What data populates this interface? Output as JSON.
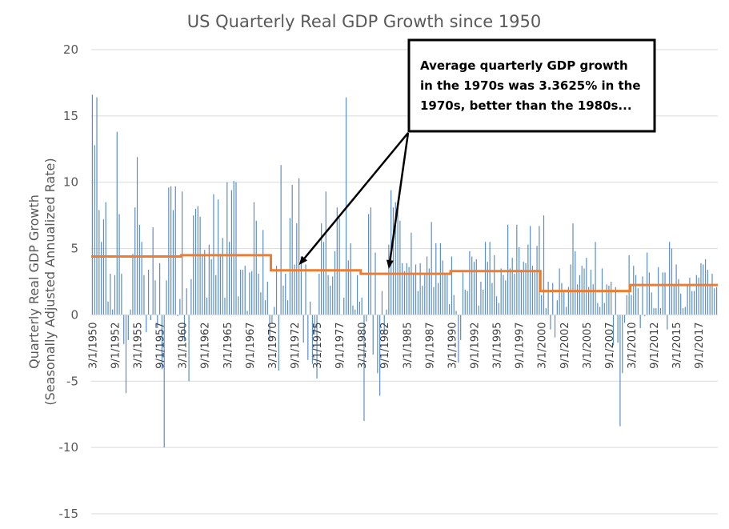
{
  "chart_data": {
    "type": "bar",
    "title": "US Quarterly Real GDP Growth since 1950",
    "ylabel_line1": "Quarterly Real GDP Growth",
    "ylabel_line2": "(Seasonally Adjusted Annualized Rate)",
    "xlabel": "",
    "ylim": [
      -15,
      20
    ],
    "yticks": [
      -15,
      -10,
      -5,
      0,
      5,
      10,
      15,
      20
    ],
    "grid": true,
    "xtick_labels": [
      "3/1/1950",
      "9/1/1952",
      "3/1/1955",
      "9/1/1957",
      "3/1/1960",
      "9/1/1962",
      "3/1/1965",
      "9/1/1967",
      "3/1/1970",
      "9/1/1972",
      "3/1/1975",
      "9/1/1977",
      "3/1/1980",
      "9/1/1982",
      "3/1/1985",
      "9/1/1987",
      "3/1/1990",
      "9/1/1992",
      "3/1/1995",
      "9/1/1997",
      "3/1/2000",
      "9/1/2002",
      "3/1/2005",
      "9/1/2007",
      "3/1/2010",
      "9/1/2012",
      "3/1/2015",
      "9/1/2017"
    ],
    "start_quarter": "3/1/1950",
    "quarterly_growth_by_year": {
      "1950": [
        16.6,
        12.8,
        16.4,
        7.9
      ],
      "1951": [
        5.5,
        7.2,
        8.5,
        1.0
      ],
      "1952": [
        3.1,
        0.4,
        3.0,
        13.8
      ],
      "1953": [
        7.6,
        3.1,
        -2.2,
        -5.9
      ],
      "1954": [
        -1.9,
        0.4,
        4.6,
        8.1
      ],
      "1955": [
        11.9,
        6.8,
        5.5,
        3.0
      ],
      "1956": [
        -1.3,
        3.4,
        -0.4,
        6.6
      ],
      "1957": [
        2.6,
        -1.0,
        3.9,
        -4.1
      ],
      "1958": [
        -10.0,
        2.6,
        9.6,
        9.7
      ],
      "1959": [
        7.9,
        9.7,
        -0.1,
        1.2
      ],
      "1960": [
        9.3,
        -2.0,
        2.0,
        -5.0
      ],
      "1961": [
        2.7,
        7.5,
        8.0,
        8.2
      ],
      "1962": [
        7.4,
        4.5,
        4.9,
        1.3
      ],
      "1963": [
        5.3,
        4.2,
        9.1,
        3.0
      ],
      "1964": [
        8.7,
        4.6,
        5.8,
        1.3
      ],
      "1965": [
        10.0,
        5.5,
        9.4,
        10.1
      ],
      "1966": [
        10.0,
        1.4,
        3.4,
        3.4
      ],
      "1967": [
        3.7,
        0.3,
        3.2,
        3.3
      ],
      "1968": [
        8.5,
        7.1,
        3.1,
        1.7
      ],
      "1969": [
        6.4,
        1.1,
        2.5,
        -1.9
      ],
      "1970": [
        -0.6,
        0.6,
        3.7,
        -4.2
      ],
      "1971": [
        11.3,
        2.2,
        3.1,
        1.1
      ],
      "1972": [
        7.3,
        9.8,
        3.8,
        6.9
      ],
      "1973": [
        10.3,
        4.4,
        -2.1,
        3.8
      ],
      "1974": [
        -3.4,
        1.0,
        -3.7,
        -1.5
      ],
      "1975": [
        -4.8,
        3.1,
        6.9,
        5.5
      ],
      "1976": [
        9.3,
        3.0,
        2.2,
        2.9
      ],
      "1977": [
        4.8,
        8.1,
        7.3,
        0.0
      ],
      "1978": [
        1.3,
        16.4,
        4.1,
        5.4
      ],
      "1979": [
        0.7,
        0.4,
        3.0,
        1.0
      ],
      "1980": [
        1.3,
        -8.0,
        -0.5,
        7.6
      ],
      "1981": [
        8.1,
        -3.0,
        4.7,
        -4.4
      ],
      "1982": [
        -6.1,
        1.8,
        -1.5,
        0.4
      ],
      "1983": [
        5.3,
        9.4,
        8.1,
        8.5
      ],
      "1984": [
        8.2,
        7.1,
        3.9,
        3.3
      ],
      "1985": [
        3.9,
        3.6,
        6.2,
        3.1
      ],
      "1986": [
        3.8,
        1.8,
        3.9,
        2.2
      ],
      "1987": [
        3.0,
        4.4,
        3.5,
        7.0
      ],
      "1988": [
        2.1,
        5.4,
        2.4,
        5.4
      ],
      "1989": [
        4.1,
        3.1,
        3.0,
        0.8
      ],
      "1990": [
        4.4,
        1.5,
        0.3,
        -3.6
      ],
      "1991": [
        -1.9,
        3.2,
        1.9,
        1.8
      ],
      "1992": [
        4.8,
        4.4,
        4.0,
        4.2
      ],
      "1993": [
        0.7,
        2.5,
        1.9,
        5.5
      ],
      "1994": [
        4.0,
        5.5,
        2.4,
        4.5
      ],
      "1995": [
        1.4,
        0.9,
        3.5,
        3.0
      ],
      "1996": [
        2.6,
        6.8,
        3.5,
        4.3
      ],
      "1997": [
        3.1,
        6.8,
        5.1,
        3.4
      ],
      "1998": [
        4.0,
        3.9,
        5.3,
        6.7
      ],
      "1999": [
        3.7,
        3.4,
        5.2,
        6.7
      ],
      "2000": [
        1.5,
        7.5,
        0.5,
        2.5
      ],
      "2001": [
        -1.1,
        2.4,
        -1.7,
        1.1
      ],
      "2002": [
        3.5,
        2.4,
        1.8,
        0.6
      ],
      "2003": [
        2.1,
        3.8,
        6.9,
        4.8
      ],
      "2004": [
        2.3,
        3.0,
        3.7,
        3.5
      ],
      "2005": [
        4.3,
        2.1,
        3.4,
        2.3
      ],
      "2006": [
        5.5,
        0.9,
        0.6,
        3.5
      ],
      "2007": [
        0.9,
        2.3,
        2.2,
        2.5
      ],
      "2008": [
        -2.3,
        2.1,
        -2.1,
        -8.4
      ],
      "2009": [
        -4.4,
        -0.6,
        1.5,
        4.5
      ],
      "2010": [
        1.5,
        3.7,
        3.0,
        2.0
      ],
      "2011": [
        -1.0,
        2.9,
        -0.1,
        4.7
      ],
      "2012": [
        3.2,
        1.7,
        0.5,
        0.5
      ],
      "2013": [
        3.6,
        0.5,
        3.2,
        3.2
      ],
      "2014": [
        -1.1,
        5.5,
        5.0,
        2.3
      ],
      "2015": [
        3.8,
        2.7,
        1.6,
        0.5
      ],
      "2016": [
        0.6,
        2.2,
        2.8,
        1.8
      ],
      "2017": [
        1.8,
        3.0,
        2.8,
        3.9
      ],
      "2018": [
        3.8,
        4.2,
        3.4,
        2.2
      ],
      "2019": [
        3.1,
        2.0,
        2.1
      ]
    },
    "series": [
      {
        "kind": "bars",
        "color": "#5b8ec7"
      },
      {
        "kind": "decade_average_line",
        "color": "#ed7d31",
        "segments": [
          {
            "from": "3/1/1950",
            "to": "12/1/1959",
            "value": 4.4
          },
          {
            "from": "3/1/1960",
            "to": "12/1/1969",
            "value": 4.5
          },
          {
            "from": "3/1/1970",
            "to": "12/1/1979",
            "value": 3.3625
          },
          {
            "from": "3/1/1980",
            "to": "12/1/1989",
            "value": 3.1
          },
          {
            "from": "3/1/1990",
            "to": "12/1/1999",
            "value": 3.3
          },
          {
            "from": "3/1/2000",
            "to": "12/1/2009",
            "value": 1.8
          },
          {
            "from": "3/1/2010",
            "to": "9/1/2019",
            "value": 2.25
          }
        ]
      }
    ],
    "annotation": {
      "lines": [
        "Average quarterly GDP growth",
        "in the 1970s was 3.3625% in the",
        "1970s, better than the 1980s..."
      ],
      "arrow_targets": [
        {
          "date": "3/1/1973",
          "value": 3.4
        },
        {
          "date": "3/1/1983",
          "value": 3.1
        }
      ]
    }
  }
}
